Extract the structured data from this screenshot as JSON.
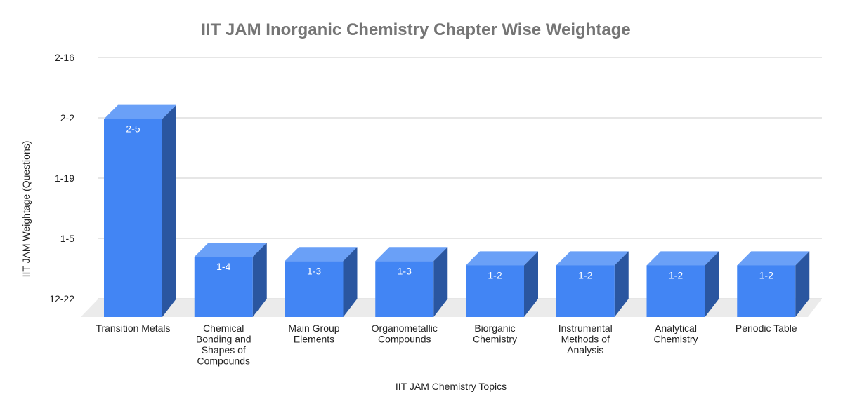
{
  "chart_data": {
    "type": "bar",
    "style": "3d",
    "title": "IIT JAM Inorganic Chemistry Chapter Wise Weightage",
    "xlabel": "IIT JAM Chemistry Topics",
    "ylabel": "IIT JAM Weightage (Questions)",
    "y_ticks": [
      "12-22",
      "1-5",
      "1-19",
      "2-2",
      "2-16"
    ],
    "y_axis_kind": "date (month-day)",
    "ylim": [
      "12-22",
      "2-16"
    ],
    "grid": true,
    "legend": "none",
    "categories": [
      "Transition Metals",
      "Chemical Bonding and Shapes of Compounds",
      "Main Group Elements",
      "Organometallic Compounds",
      "Biorganic Chemistry",
      "Instrumental Methods of Analysis",
      "Analytical Chemistry",
      "Periodic Table"
    ],
    "category_lines": [
      [
        "Transition Metals"
      ],
      [
        "Chemical",
        "Bonding and",
        "Shapes of",
        "Compounds"
      ],
      [
        "Main Group",
        "Elements"
      ],
      [
        "Organometallic",
        "Compounds"
      ],
      [
        "Biorganic",
        "Chemistry"
      ],
      [
        "Instrumental",
        "Methods of",
        "Analysis"
      ],
      [
        "Analytical",
        "Chemistry"
      ],
      [
        "Periodic Table"
      ]
    ],
    "values": [
      "2-5",
      "1-4",
      "1-3",
      "1-3",
      "1-2",
      "1-2",
      "1-2",
      "1-2"
    ],
    "colors": {
      "front": "#4285f4",
      "top": "#6aa0f7",
      "side": "#2a56a0",
      "floor": "#ebebeb",
      "grid": "#cccccc",
      "title": "#757575"
    }
  }
}
